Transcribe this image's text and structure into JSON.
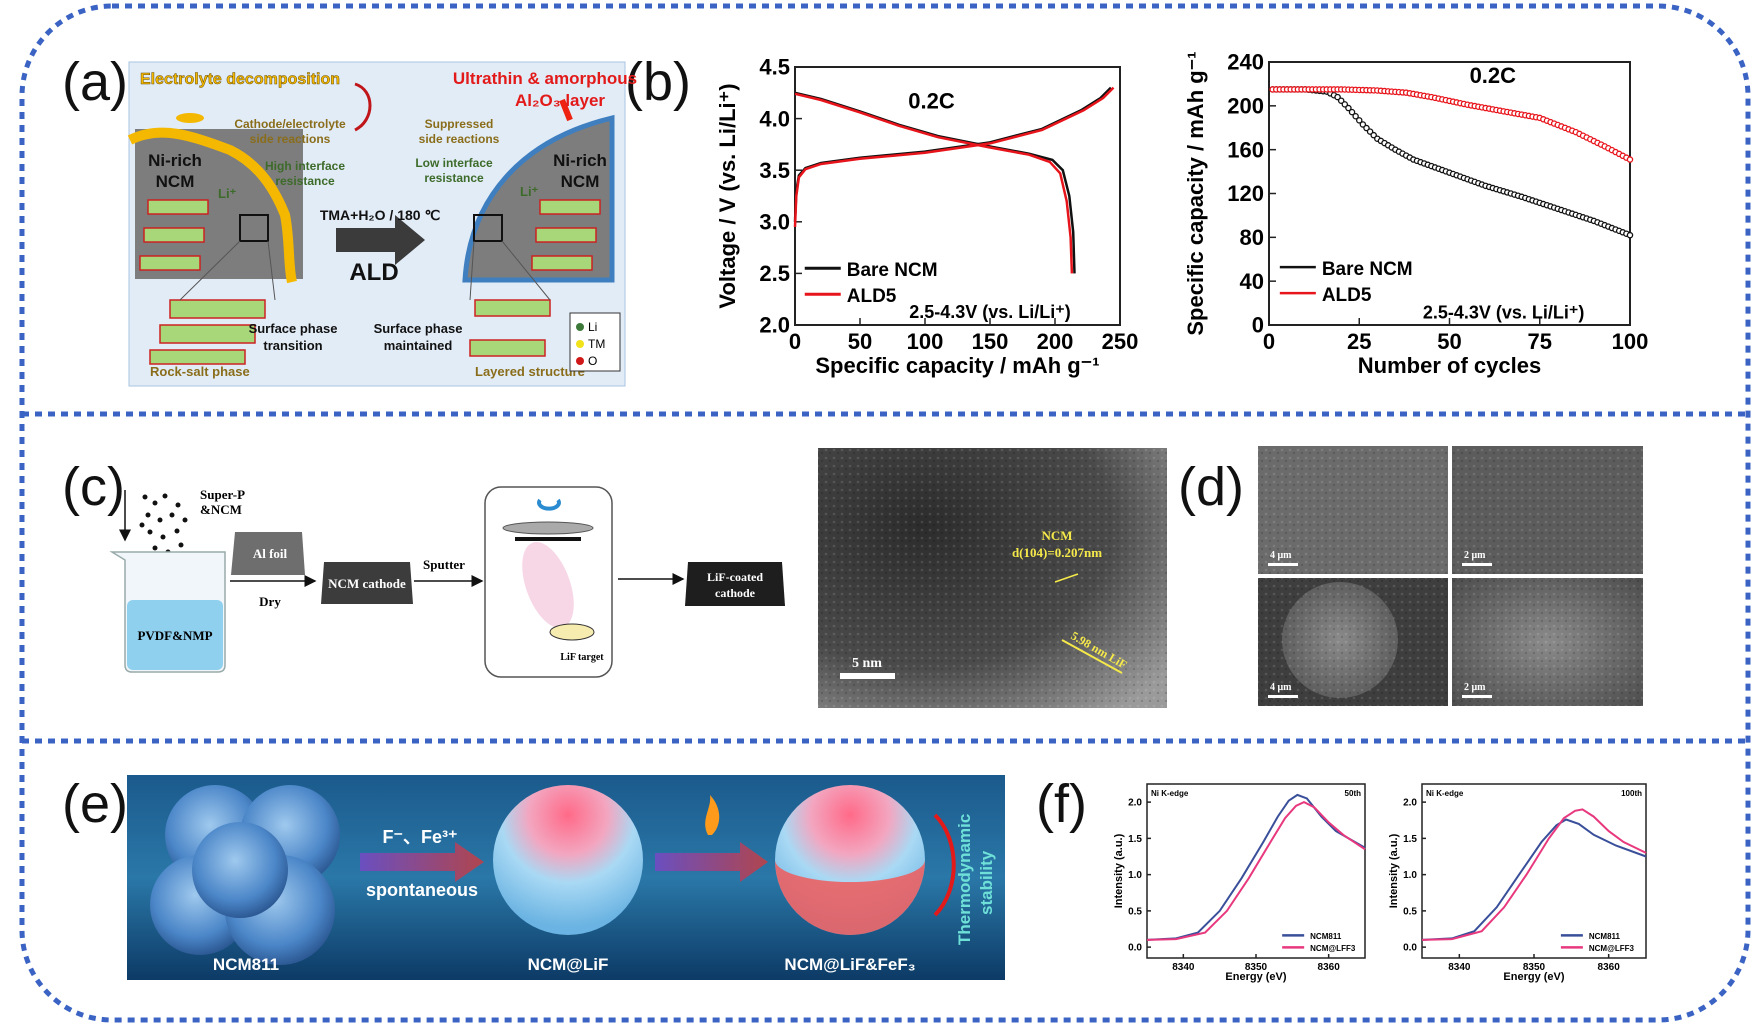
{
  "panel_labels": {
    "a": "(a)",
    "b": "(b)",
    "c": "(c)",
    "d": "(d)",
    "e": "(e)",
    "f": "(f)"
  },
  "colors": {
    "border": "#3b63c4",
    "bare": "#111111",
    "ald5": "#e8141b",
    "ncm811": "#3a4f9a",
    "lff3": "#e8387e"
  },
  "panel_a": {
    "electrolyte_decomposition": "Electrolyte decomposition",
    "ultrathin_line1": "Ultrathin & amorphous",
    "ultrathin_line2": "Al₂O₃ layer",
    "cathode_line1": "Cathode/electrolyte",
    "cathode_line2": "side reactions",
    "suppressed_line1": "Suppressed",
    "suppressed_line2": "side reactions",
    "high_line1": "High interface",
    "high_line2": "resistance",
    "low_line1": "Low interface",
    "low_line2": "resistance",
    "nirich_left_1": "Ni-rich",
    "nirich_left_2": "NCM",
    "nirich_right_1": "Ni-rich",
    "nirich_right_2": "NCM",
    "li_left": "Li⁺",
    "li_right": "Li⁺",
    "process": "TMA+H₂O / 180 ℃",
    "ald": "ALD",
    "spt_line1": "Surface phase",
    "spt_line2": "transition",
    "spm_line1": "Surface phase",
    "spm_line2": "maintained",
    "rock_salt": "Rock-salt phase",
    "layered": "Layered structure",
    "legend": [
      "Li",
      "TM",
      "O"
    ]
  },
  "panel_c": {
    "superp_1": "Super-P",
    "superp_2": "&NCM",
    "pvdf": "PVDF&NMP",
    "al_foil": "Al foil",
    "dry": "Dry",
    "ncm_cathode": "NCM cathode",
    "sputter": "Sputter",
    "lif_target": "LiF target",
    "lif_coated_1": "LiF-coated",
    "lif_coated_2": "cathode",
    "tem_ncm": "NCM",
    "tem_d": "d(104)=0.207nm",
    "tem_lif": "5.98 nm LiF",
    "tem_scale": "5 nm"
  },
  "panel_d": {
    "scales": [
      "4 μm",
      "2 μm",
      "4 μm",
      "2 μm"
    ]
  },
  "panel_e": {
    "ions": "F⁻、Fe³⁺",
    "spontaneous": "spontaneous",
    "ncm811": "NCM811",
    "ncm_lif": "NCM@LiF",
    "ncm_lif_fef3": "NCM@LiF&FeF₃",
    "thermo_1": "Thermodynamic",
    "thermo_2": "stability"
  },
  "chart_data": [
    {
      "type": "line",
      "xlabel": "Specific capacity / mAh g⁻¹",
      "ylabel": "Voltage / V (vs. Li/Li⁺)",
      "xlim": [
        0,
        250
      ],
      "ylim": [
        2.0,
        4.5
      ],
      "xticks": [
        "0",
        "50",
        "100",
        "150",
        "200",
        "250"
      ],
      "yticks": [
        "2.0",
        "2.5",
        "3.0",
        "3.5",
        "4.0",
        "4.5"
      ],
      "legend": "lower-left",
      "annotations": [
        {
          "text": "0.2C",
          "x": 105,
          "y": 4.1
        },
        {
          "text": "2.5-4.3V (vs. Li/Li⁺)",
          "x": 150,
          "y": 2.07
        }
      ],
      "series": [
        {
          "name": "Bare NCM",
          "color": "#111111",
          "curves": [
            [
              [
                0,
                3.0
              ],
              [
                1,
                3.3
              ],
              [
                3,
                3.45
              ],
              [
                8,
                3.52
              ],
              [
                20,
                3.57
              ],
              [
                50,
                3.62
              ],
              [
                100,
                3.68
              ],
              [
                150,
                3.77
              ],
              [
                190,
                3.9
              ],
              [
                220,
                4.08
              ],
              [
                235,
                4.2
              ],
              [
                243,
                4.3
              ]
            ],
            [
              [
                0,
                4.25
              ],
              [
                20,
                4.19
              ],
              [
                50,
                4.07
              ],
              [
                80,
                3.94
              ],
              [
                110,
                3.83
              ],
              [
                150,
                3.73
              ],
              [
                180,
                3.66
              ],
              [
                198,
                3.6
              ],
              [
                206,
                3.5
              ],
              [
                211,
                3.25
              ],
              [
                214,
                2.9
              ],
              [
                215,
                2.5
              ]
            ]
          ]
        },
        {
          "name": "ALD5",
          "color": "#e8141b",
          "curves": [
            [
              [
                0,
                2.95
              ],
              [
                1,
                3.25
              ],
              [
                3,
                3.43
              ],
              [
                8,
                3.51
              ],
              [
                20,
                3.56
              ],
              [
                50,
                3.61
              ],
              [
                100,
                3.67
              ],
              [
                150,
                3.76
              ],
              [
                190,
                3.89
              ],
              [
                222,
                4.08
              ],
              [
                237,
                4.2
              ],
              [
                245,
                4.3
              ]
            ],
            [
              [
                0,
                4.24
              ],
              [
                20,
                4.18
              ],
              [
                50,
                4.06
              ],
              [
                80,
                3.93
              ],
              [
                110,
                3.82
              ],
              [
                150,
                3.72
              ],
              [
                180,
                3.65
              ],
              [
                196,
                3.58
              ],
              [
                204,
                3.47
              ],
              [
                209,
                3.2
              ],
              [
                212,
                2.85
              ],
              [
                213,
                2.5
              ]
            ]
          ]
        }
      ]
    },
    {
      "type": "line",
      "xlabel": "Number of cycles",
      "ylabel": "Specific capacity / mAh g⁻¹",
      "xlim": [
        0,
        100
      ],
      "ylim": [
        0,
        240
      ],
      "xticks": [
        "0",
        "25",
        "50",
        "75",
        "100"
      ],
      "yticks": [
        "0",
        "40",
        "80",
        "120",
        "160",
        "200",
        "240"
      ],
      "legend": "lower-left",
      "annotations": [
        {
          "text": "0.2C",
          "x": 62,
          "y": 221
        },
        {
          "text": "2.5-4.3V (vs. Li/Li⁺)",
          "x": 65,
          "y": 6
        }
      ],
      "series": [
        {
          "name": "Bare NCM",
          "color": "#111111",
          "curves": [
            [
              [
                1,
                215
              ],
              [
                10,
                215
              ],
              [
                16,
                213
              ],
              [
                19,
                208
              ],
              [
                22,
                198
              ],
              [
                26,
                183
              ],
              [
                30,
                170
              ],
              [
                35,
                160
              ],
              [
                40,
                151
              ],
              [
                45,
                145
              ],
              [
                50,
                139
              ],
              [
                60,
                127
              ],
              [
                70,
                117
              ],
              [
                80,
                106
              ],
              [
                90,
                95
              ],
              [
                100,
                82
              ]
            ]
          ]
        },
        {
          "name": "ALD5",
          "color": "#e8141b",
          "curves": [
            [
              [
                1,
                215
              ],
              [
                20,
                215
              ],
              [
                30,
                214
              ],
              [
                38,
                212
              ],
              [
                45,
                208
              ],
              [
                55,
                201
              ],
              [
                65,
                195
              ],
              [
                75,
                189
              ],
              [
                85,
                176
              ],
              [
                93,
                163
              ],
              [
                100,
                151
              ]
            ]
          ]
        }
      ]
    },
    {
      "type": "line",
      "title_left": "Ni K-edge",
      "title_right": "50th",
      "xlabel": "Energy (eV)",
      "ylabel": "Intensity (a.u.)",
      "xlim": [
        8335,
        8365
      ],
      "ylim": [
        -0.15,
        2.25
      ],
      "xticks": [
        "8340",
        "8350",
        "8360"
      ],
      "yticks": [
        "0.0",
        "0.5",
        "1.0",
        "1.5",
        "2.0"
      ],
      "legend": "lower-right",
      "series": [
        {
          "name": "NCM811",
          "color": "#3a4f9a",
          "curves": [
            [
              [
                8335,
                0.1
              ],
              [
                8339,
                0.12
              ],
              [
                8342,
                0.2
              ],
              [
                8345,
                0.5
              ],
              [
                8348,
                0.95
              ],
              [
                8351,
                1.45
              ],
              [
                8353,
                1.8
              ],
              [
                8354.5,
                2.02
              ],
              [
                8355.7,
                2.1
              ],
              [
                8357,
                2.05
              ],
              [
                8359,
                1.8
              ],
              [
                8361,
                1.6
              ],
              [
                8365,
                1.37
              ]
            ]
          ]
        },
        {
          "name": "NCM@LFF3",
          "color": "#e8387e",
          "curves": [
            [
              [
                8335,
                0.1
              ],
              [
                8339,
                0.11
              ],
              [
                8343,
                0.2
              ],
              [
                8346,
                0.5
              ],
              [
                8349,
                0.95
              ],
              [
                8352,
                1.45
              ],
              [
                8354,
                1.78
              ],
              [
                8355.5,
                1.95
              ],
              [
                8356.6,
                2.0
              ],
              [
                8358,
                1.93
              ],
              [
                8360,
                1.72
              ],
              [
                8362,
                1.55
              ],
              [
                8365,
                1.35
              ]
            ]
          ]
        }
      ]
    },
    {
      "type": "line",
      "title_left": "Ni K-edge",
      "title_right": "100th",
      "xlabel": "Energy (eV)",
      "ylabel": "Intensity (a.u.)",
      "xlim": [
        8335,
        8365
      ],
      "ylim": [
        -0.15,
        2.25
      ],
      "xticks": [
        "8340",
        "8350",
        "8360"
      ],
      "yticks": [
        "0.0",
        "0.5",
        "1.0",
        "1.5",
        "2.0"
      ],
      "legend": "lower-right",
      "series": [
        {
          "name": "NCM811",
          "color": "#3a4f9a",
          "curves": [
            [
              [
                8335,
                0.1
              ],
              [
                8339,
                0.12
              ],
              [
                8342,
                0.22
              ],
              [
                8345,
                0.55
              ],
              [
                8348,
                1.0
              ],
              [
                8351,
                1.45
              ],
              [
                8353,
                1.68
              ],
              [
                8354.3,
                1.76
              ],
              [
                8356,
                1.7
              ],
              [
                8358,
                1.55
              ],
              [
                8361,
                1.4
              ],
              [
                8365,
                1.25
              ]
            ]
          ]
        },
        {
          "name": "NCM@LFF3",
          "color": "#e8387e",
          "curves": [
            [
              [
                8335,
                0.1
              ],
              [
                8339,
                0.11
              ],
              [
                8343,
                0.22
              ],
              [
                8346,
                0.55
              ],
              [
                8349,
                1.0
              ],
              [
                8352,
                1.5
              ],
              [
                8354,
                1.78
              ],
              [
                8355.5,
                1.88
              ],
              [
                8356.5,
                1.9
              ],
              [
                8358,
                1.8
              ],
              [
                8360,
                1.6
              ],
              [
                8362,
                1.45
              ],
              [
                8365,
                1.3
              ]
            ]
          ]
        }
      ]
    }
  ]
}
